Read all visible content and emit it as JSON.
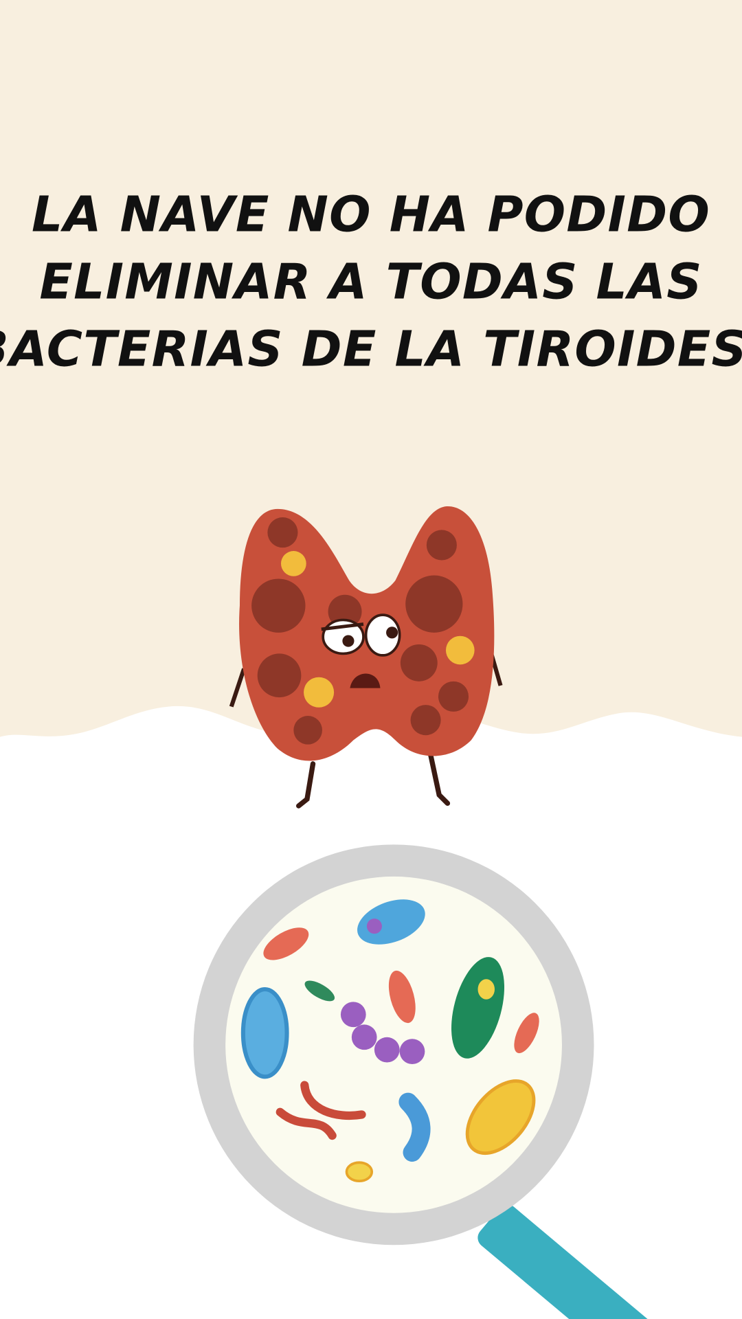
{
  "title": {
    "lines": [
      "LA NAVE NO HA PODIDO",
      "ELIMINAR A TODAS LAS",
      "BACTERIAS DE LA TIROIDES!"
    ]
  }
}
